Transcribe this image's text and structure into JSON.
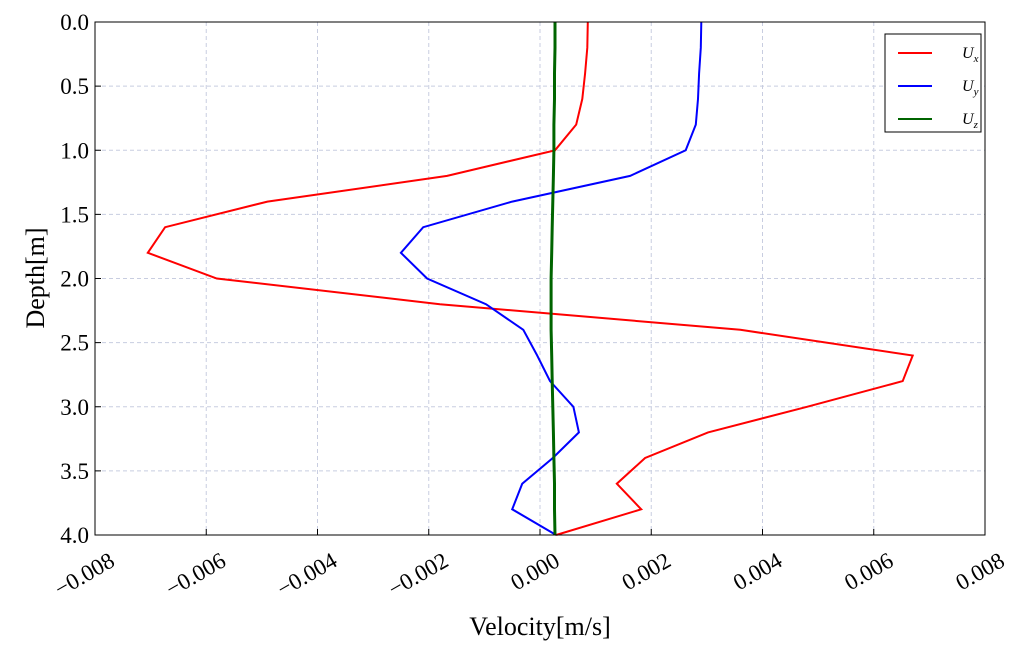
{
  "chart_data": {
    "type": "line",
    "x_label": "Velocity[m/s]",
    "y_label": "Depth[m]",
    "xlim": [
      -0.008,
      0.008
    ],
    "xticks": [
      {
        "value": -0.008,
        "label": "−0.008"
      },
      {
        "value": -0.006,
        "label": "−0.006"
      },
      {
        "value": -0.004,
        "label": "−0.004"
      },
      {
        "value": -0.002,
        "label": "−0.002"
      },
      {
        "value": 0,
        "label": "0.000"
      },
      {
        "value": 0.002,
        "label": "0.002"
      },
      {
        "value": 0.004,
        "label": "0.004"
      },
      {
        "value": 0.006,
        "label": "0.006"
      },
      {
        "value": 0.008,
        "label": "0.008"
      }
    ],
    "ylim": [
      4,
      0
    ],
    "yticks": [
      {
        "value": 0,
        "label": "0.0"
      },
      0.5,
      {
        "value": 1,
        "label": "1.0"
      },
      1.5,
      {
        "value": 2,
        "label": "2.0"
      },
      2.5,
      {
        "value": 3,
        "label": "3.0"
      },
      3.5,
      {
        "value": 4,
        "label": "4.0"
      }
    ],
    "grid": true,
    "legend": "upper right",
    "y": [
      0,
      0.2,
      0.4,
      0.6,
      0.8,
      1.0,
      1.2,
      1.4,
      1.6,
      1.8,
      2.0,
      2.2,
      2.4,
      2.6,
      2.8,
      3.0,
      3.2,
      3.4,
      3.6,
      3.8,
      4.0
    ],
    "series": [
      {
        "name": "Ux",
        "color": "#ff0000",
        "values": [
          0.00086,
          0.00085,
          0.00081,
          0.00076,
          0.00065,
          0.00027,
          -0.00167,
          -0.0049,
          -0.00674,
          -0.00705,
          -0.00581,
          -0.0018,
          0.0036,
          0.0067,
          0.00652,
          0.0048,
          0.00302,
          0.00189,
          0.00138,
          0.00182,
          0.00029
        ]
      },
      {
        "name": "Uy",
        "color": "#0000ff",
        "values": [
          0.0029,
          0.00289,
          0.00286,
          0.00284,
          0.0028,
          0.00262,
          0.00162,
          -0.0005,
          -0.0021,
          -0.0025,
          -0.00203,
          -0.00097,
          -0.0003,
          -5e-05,
          0.00018,
          0.0006,
          0.0007,
          0.00023,
          -0.00032,
          -0.0005,
          0.00029
        ]
      },
      {
        "name": "Uz",
        "color": "#006400",
        "values": [
          0.00027,
          0.00027,
          0.00026,
          0.00026,
          0.00025,
          0.00025,
          0.00024,
          0.00023,
          0.00022,
          0.00021,
          0.0002,
          0.0002,
          0.0002,
          0.00021,
          0.00022,
          0.00023,
          0.00024,
          0.00025,
          0.00026,
          0.00026,
          0.00027
        ]
      }
    ]
  }
}
